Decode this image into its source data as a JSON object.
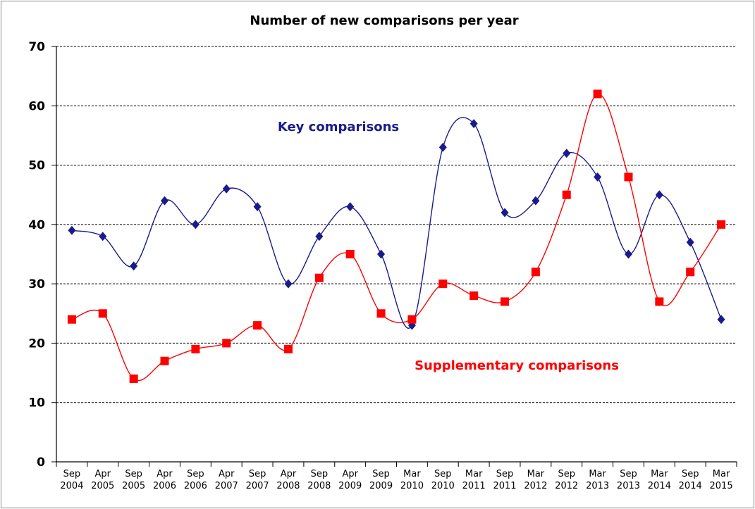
{
  "chart_data": {
    "type": "line",
    "title": "Number of new comparisons per year",
    "ylim": [
      0,
      70
    ],
    "yticks": [
      "0",
      "10",
      "20",
      "30",
      "40",
      "50",
      "60",
      "70"
    ],
    "grid": "horizontal dashed",
    "categories": [
      [
        "Sep",
        "2004"
      ],
      [
        "Apr",
        "2005"
      ],
      [
        "Sep",
        "2005"
      ],
      [
        "Apr",
        "2006"
      ],
      [
        "Sep",
        "2006"
      ],
      [
        "Apr",
        "2007"
      ],
      [
        "Sep",
        "2007"
      ],
      [
        "Apr",
        "2008"
      ],
      [
        "Sep",
        "2008"
      ],
      [
        "Apr",
        "2009"
      ],
      [
        "Sep",
        "2009"
      ],
      [
        "Mar",
        "2010"
      ],
      [
        "Sep",
        "2010"
      ],
      [
        "Mar",
        "2011"
      ],
      [
        "Sep",
        "2011"
      ],
      [
        "Mar",
        "2012"
      ],
      [
        "Sep",
        "2012"
      ],
      [
        "Mar",
        "2013"
      ],
      [
        "Sep",
        "2013"
      ],
      [
        "Mar",
        "2014"
      ],
      [
        "Sep",
        "2014"
      ],
      [
        "Mar",
        "2015"
      ]
    ],
    "series": [
      {
        "name": "Key comparisons",
        "color": "#1a1a8c",
        "marker": "diamond",
        "values": [
          39,
          38,
          33,
          44,
          40,
          46,
          43,
          30,
          38,
          43,
          35,
          23,
          53,
          57,
          42,
          44,
          52,
          48,
          35,
          45,
          37,
          24
        ]
      },
      {
        "name": "Supplementary comparisons",
        "color": "#ff0000",
        "marker": "square",
        "values": [
          24,
          25,
          14,
          17,
          19,
          20,
          23,
          19,
          31,
          35,
          25,
          24,
          30,
          28,
          27,
          32,
          45,
          62,
          48,
          27,
          32,
          40
        ]
      }
    ]
  }
}
